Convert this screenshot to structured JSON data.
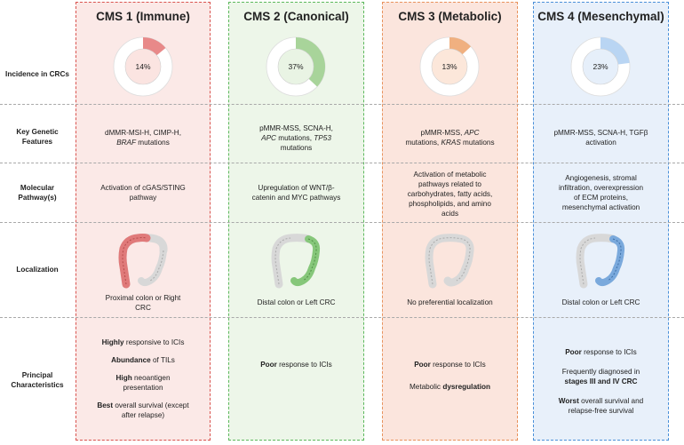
{
  "columns": [
    {
      "title": "CMS 1 (Immune)",
      "border": "#d9534f",
      "bg": "#fbe9e7",
      "accent": "#e88989",
      "fill_bg": "#fbe4e1",
      "incidence": 14,
      "incidence_label": "14%"
    },
    {
      "title": "CMS 2 (Canonical)",
      "border": "#5cb85c",
      "bg": "#edf6e9",
      "accent": "#a8d49a",
      "fill_bg": "#e9f4e4",
      "incidence": 37,
      "incidence_label": "37%"
    },
    {
      "title": "CMS 3 (Metabolic)",
      "border": "#e8925c",
      "bg": "#fbe5dd",
      "accent": "#f0b080",
      "fill_bg": "#fce7da",
      "incidence": 13,
      "incidence_label": "13%"
    },
    {
      "title": "CMS 4 (Mesenchymal)",
      "border": "#4a90d9",
      "bg": "#e8f0fa",
      "accent": "#b9d5f3",
      "fill_bg": "#e6effa",
      "incidence": 23,
      "incidence_label": "23%"
    }
  ],
  "rows": {
    "incidence": "Incidence in CRCs",
    "genetic": "Key Genetic Features",
    "pathway": "Molecular Pathway(s)",
    "localization": "Localization",
    "characteristics": "Principal Characteristics"
  },
  "genetic": {
    "c1_a": "dMMR-MSI-H, CIMP-H,",
    "c1_b": "BRAF",
    "c1_c": " mutations",
    "c2_a": "pMMR-MSS, SCNA-H,",
    "c2_b": "APC",
    "c2_c": " mutations, ",
    "c2_d": "TP53",
    "c2_e": "mutations",
    "c3_a": "pMMR-MSS, ",
    "c3_b": "APC",
    "c3_c": "mutations, ",
    "c3_d": "KRAS",
    "c3_e": " mutations",
    "c4_a": "pMMR-MSS, SCNA-H, TGFβ",
    "c4_b": "activation"
  },
  "pathway": {
    "c1_a": "Activation of cGAS/STING",
    "c1_b": "pathway",
    "c2_a": "Upregulation of WNT/β-",
    "c2_b": "catenin and MYC pathways",
    "c3_a": "Activation of metabolic",
    "c3_b": "pathways related to",
    "c3_c": "carbohydrates, fatty acids,",
    "c3_d": "phospholipids, and amino",
    "c3_e": "acids",
    "c4_a": "Angiogenesis, stromal",
    "c4_b": "infiltration, overexpression",
    "c4_c": "of ECM proteins,",
    "c4_d": "mesenchymal activation"
  },
  "localization": {
    "c1_a": "Proximal colon or Right",
    "c1_b": "CRC",
    "c2": "Distal colon or Left CRC",
    "c3": "No preferential localization",
    "c4": "Distal colon or Left CRC"
  },
  "characteristics": {
    "c1_1b": "Highly",
    "c1_1": " responsive to ICIs",
    "c1_2b": "Abundance",
    "c1_2": " of TILs",
    "c1_3b": "High",
    "c1_3": " neoantigen",
    "c1_3c": "presentation",
    "c1_4b": "Best",
    "c1_4": " overall survival (except",
    "c1_4c": "after relapse)",
    "c2_b": "Poor",
    "c2": " response to ICIs",
    "c3_b": "Poor",
    "c3": " response to ICIs",
    "c3_2": "Metabolic ",
    "c3_2b": "dysregulation",
    "c4_1b": "Poor",
    "c4_1": " response to ICIs",
    "c4_2": "Frequently diagnosed in",
    "c4_2b": "stages III and IV CRC",
    "c4_3b": "Worst",
    "c4_3": " overall survival and",
    "c4_3c": "relapse-free survival"
  }
}
